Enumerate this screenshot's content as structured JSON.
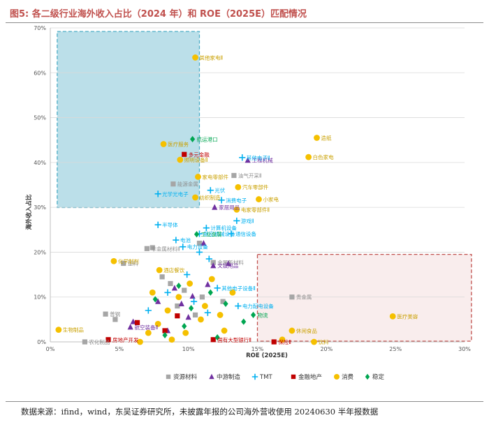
{
  "title": "图5: 各二级行业海外收入占比（2024 年）和 ROE（2025E）匹配情况",
  "source_note": "数据来源：ifind，wind，东吴证券研究所，未披露年报的公司海外营收使用 20240630 半年报数据",
  "chart_data": {
    "type": "scatter",
    "title": "各二级行业海外收入占比（2024 年）和 ROE（2025E）匹配情况",
    "xlabel": "ROE (2025E)",
    "ylabel": "海外收入占比",
    "xlim": [
      0,
      0.3
    ],
    "ylim": [
      0,
      0.7
    ],
    "xticks": [
      "0%",
      "5%",
      "10%",
      "15%",
      "20%",
      "25%",
      "30%"
    ],
    "yticks": [
      "0%",
      "10%",
      "20%",
      "30%",
      "40%",
      "50%",
      "60%",
      "70%"
    ],
    "legend_position": "bottom",
    "highlight_regions": [
      {
        "color": "#4bacc6",
        "x": [
          0.005,
          0.108
        ],
        "y": [
          0.298,
          0.692
        ]
      },
      {
        "color": "#c0504d",
        "x": [
          0.15,
          0.305
        ],
        "y": [
          0.0,
          0.195
        ]
      }
    ],
    "series": [
      {
        "name": "资源材料",
        "color": "#a6a6a6",
        "marker": "square",
        "points": [
          {
            "x": 0.089,
            "y": 0.352,
            "label": "能源金属"
          },
          {
            "x": 0.133,
            "y": 0.371,
            "label": "油气开采Ⅱ"
          },
          {
            "x": 0.07,
            "y": 0.208,
            "label": "非金属材料Ⅱ"
          },
          {
            "x": 0.053,
            "y": 0.175,
            "label": "塑料"
          },
          {
            "x": 0.118,
            "y": 0.177,
            "label": "金属新材料"
          },
          {
            "x": 0.175,
            "y": 0.1,
            "label": "贵金属"
          },
          {
            "x": 0.04,
            "y": 0.062,
            "label": "普钢"
          },
          {
            "x": 0.047,
            "y": 0.05
          },
          {
            "x": 0.025,
            "y": 0.0,
            "label": "农化制品"
          },
          {
            "x": 0.081,
            "y": 0.145
          },
          {
            "x": 0.087,
            "y": 0.13
          },
          {
            "x": 0.097,
            "y": 0.115
          },
          {
            "x": 0.11,
            "y": 0.1
          },
          {
            "x": 0.092,
            "y": 0.08
          },
          {
            "x": 0.125,
            "y": 0.09
          },
          {
            "x": 0.105,
            "y": 0.06
          },
          {
            "x": 0.074,
            "y": 0.21
          },
          {
            "x": 0.108,
            "y": 0.22
          }
        ]
      },
      {
        "name": "中游制造",
        "color": "#7030a0",
        "marker": "triangle",
        "points": [
          {
            "x": 0.143,
            "y": 0.405,
            "label": "工程机械"
          },
          {
            "x": 0.119,
            "y": 0.3,
            "label": "家居用品"
          },
          {
            "x": 0.118,
            "y": 0.17,
            "label": "文娱用品"
          },
          {
            "x": 0.111,
            "y": 0.22
          },
          {
            "x": 0.06,
            "y": 0.045
          },
          {
            "x": 0.058,
            "y": 0.033,
            "label": "航空装备Ⅱ"
          },
          {
            "x": 0.078,
            "y": 0.09
          },
          {
            "x": 0.09,
            "y": 0.12
          },
          {
            "x": 0.095,
            "y": 0.085
          },
          {
            "x": 0.103,
            "y": 0.102
          },
          {
            "x": 0.114,
            "y": 0.128
          },
          {
            "x": 0.129,
            "y": 0.175
          },
          {
            "x": 0.085,
            "y": 0.025
          },
          {
            "x": 0.1,
            "y": 0.055
          }
        ]
      },
      {
        "name": "TMT",
        "color": "#00b0f0",
        "marker": "plus",
        "points": [
          {
            "x": 0.139,
            "y": 0.411,
            "label": "其他电子Ⅱ"
          },
          {
            "x": 0.078,
            "y": 0.33,
            "label": "光学光电子"
          },
          {
            "x": 0.116,
            "y": 0.338,
            "label": "光伏"
          },
          {
            "x": 0.124,
            "y": 0.316,
            "label": "消费电子"
          },
          {
            "x": 0.135,
            "y": 0.27,
            "label": "游戏Ⅱ"
          },
          {
            "x": 0.078,
            "y": 0.261,
            "label": "半导体"
          },
          {
            "x": 0.113,
            "y": 0.254,
            "label": "计算机设备"
          },
          {
            "x": 0.108,
            "y": 0.241,
            "label": "航空机械设备"
          },
          {
            "x": 0.131,
            "y": 0.241,
            "label": "通信设备"
          },
          {
            "x": 0.091,
            "y": 0.227,
            "label": "电池"
          },
          {
            "x": 0.096,
            "y": 0.212,
            "label": "电力设备"
          },
          {
            "x": 0.108,
            "y": 0.2
          },
          {
            "x": 0.115,
            "y": 0.185
          },
          {
            "x": 0.121,
            "y": 0.12,
            "label": "其他电子设备Ⅱ"
          },
          {
            "x": 0.136,
            "y": 0.08,
            "label": "电力配电设备"
          },
          {
            "x": 0.071,
            "y": 0.07
          },
          {
            "x": 0.085,
            "y": 0.11
          },
          {
            "x": 0.099,
            "y": 0.15
          },
          {
            "x": 0.104,
            "y": 0.09
          },
          {
            "x": 0.114,
            "y": 0.065
          }
        ]
      },
      {
        "name": "金融地产",
        "color": "#c00000",
        "marker": "square",
        "points": [
          {
            "x": 0.097,
            "y": 0.418,
            "label": "多元金融"
          },
          {
            "x": 0.042,
            "y": 0.005,
            "label": "房地产开发"
          },
          {
            "x": 0.063,
            "y": 0.043
          },
          {
            "x": 0.083,
            "y": 0.025
          },
          {
            "x": 0.092,
            "y": 0.058
          },
          {
            "x": 0.118,
            "y": 0.005,
            "label": "国有大型银行Ⅱ"
          },
          {
            "x": 0.162,
            "y": 0.0,
            "label": "保险Ⅱ"
          }
        ]
      },
      {
        "name": "消费",
        "color": "#f5c000",
        "marker": "circle",
        "points": [
          {
            "x": 0.105,
            "y": 0.634,
            "label": "其他家电Ⅱ"
          },
          {
            "x": 0.193,
            "y": 0.455,
            "label": "造纸"
          },
          {
            "x": 0.187,
            "y": 0.412,
            "label": "白色家电"
          },
          {
            "x": 0.082,
            "y": 0.441,
            "label": "医疗服务"
          },
          {
            "x": 0.094,
            "y": 0.406,
            "label": "照明设备Ⅱ"
          },
          {
            "x": 0.107,
            "y": 0.368,
            "label": "家电零部件"
          },
          {
            "x": 0.136,
            "y": 0.345,
            "label": "汽车零部件"
          },
          {
            "x": 0.151,
            "y": 0.318,
            "label": "小家电"
          },
          {
            "x": 0.135,
            "y": 0.295,
            "label": "电家零部件Ⅱ"
          },
          {
            "x": 0.105,
            "y": 0.322,
            "label": "纺织制造"
          },
          {
            "x": 0.046,
            "y": 0.18,
            "label": "化学制剂"
          },
          {
            "x": 0.079,
            "y": 0.16,
            "label": "酒店餐饮"
          },
          {
            "x": 0.006,
            "y": 0.027,
            "label": "生物制品"
          },
          {
            "x": 0.248,
            "y": 0.057,
            "label": "医疗美容"
          },
          {
            "x": 0.191,
            "y": 0.0,
            "label": "饮料"
          },
          {
            "x": 0.175,
            "y": 0.025,
            "label": "休闲食品"
          },
          {
            "x": 0.168,
            "y": 0.005
          },
          {
            "x": 0.065,
            "y": 0.0
          },
          {
            "x": 0.071,
            "y": 0.02
          },
          {
            "x": 0.078,
            "y": 0.04
          },
          {
            "x": 0.085,
            "y": 0.07
          },
          {
            "x": 0.093,
            "y": 0.1
          },
          {
            "x": 0.101,
            "y": 0.13
          },
          {
            "x": 0.109,
            "y": 0.05
          },
          {
            "x": 0.117,
            "y": 0.14
          },
          {
            "x": 0.126,
            "y": 0.025
          },
          {
            "x": 0.132,
            "y": 0.11
          },
          {
            "x": 0.098,
            "y": 0.02
          },
          {
            "x": 0.074,
            "y": 0.11
          },
          {
            "x": 0.112,
            "y": 0.08
          },
          {
            "x": 0.123,
            "y": 0.06
          },
          {
            "x": 0.088,
            "y": 0.005
          }
        ]
      },
      {
        "name": "稳定",
        "color": "#00a651",
        "marker": "diamond",
        "points": [
          {
            "x": 0.103,
            "y": 0.452,
            "label": "航运港口"
          },
          {
            "x": 0.106,
            "y": 0.24,
            "label": "工业金属"
          },
          {
            "x": 0.076,
            "y": 0.095
          },
          {
            "x": 0.093,
            "y": 0.125
          },
          {
            "x": 0.102,
            "y": 0.075
          },
          {
            "x": 0.116,
            "y": 0.11
          },
          {
            "x": 0.127,
            "y": 0.085
          },
          {
            "x": 0.14,
            "y": 0.045
          },
          {
            "x": 0.147,
            "y": 0.06,
            "label": "物流"
          },
          {
            "x": 0.083,
            "y": 0.015
          },
          {
            "x": 0.097,
            "y": 0.035
          },
          {
            "x": 0.121,
            "y": 0.01
          }
        ]
      }
    ]
  }
}
